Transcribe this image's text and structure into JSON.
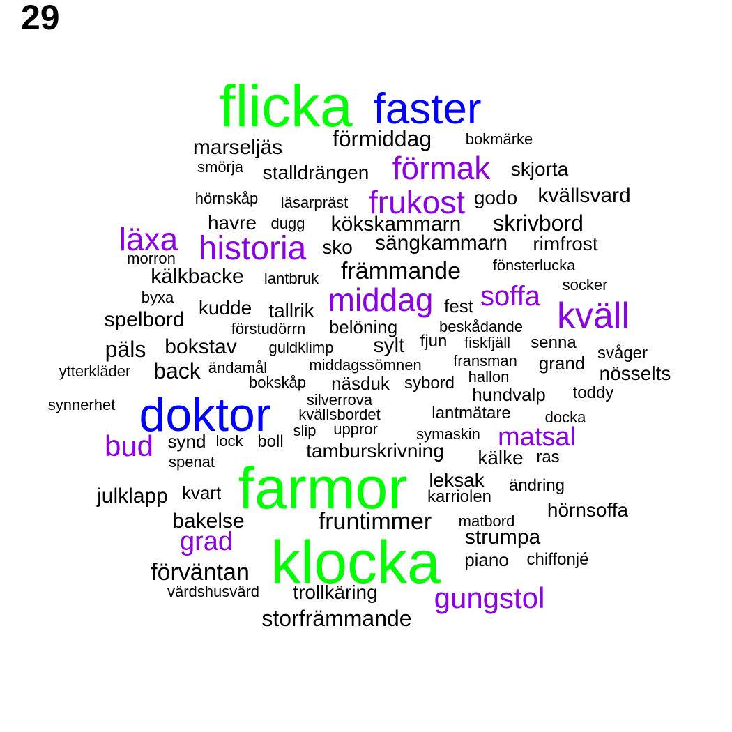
{
  "page_number": "29",
  "colors": {
    "green": "#00ff00",
    "blue": "#0000ff",
    "purple": "#8b00e6",
    "black": "#000000"
  },
  "words": [
    {
      "text": "flicka",
      "group": "green"
    },
    {
      "text": "faster",
      "group": "blue"
    },
    {
      "text": "förmiddag",
      "group": "black"
    },
    {
      "text": "bokmärke",
      "group": "black"
    },
    {
      "text": "marseljäs",
      "group": "black"
    },
    {
      "text": "smörja",
      "group": "black"
    },
    {
      "text": "stalldrängen",
      "group": "black"
    },
    {
      "text": "förmak",
      "group": "purple"
    },
    {
      "text": "skjorta",
      "group": "black"
    },
    {
      "text": "hörnskåp",
      "group": "black"
    },
    {
      "text": "läsarpräst",
      "group": "black"
    },
    {
      "text": "frukost",
      "group": "purple"
    },
    {
      "text": "godo",
      "group": "black"
    },
    {
      "text": "kvällsvard",
      "group": "black"
    },
    {
      "text": "havre",
      "group": "black"
    },
    {
      "text": "dugg",
      "group": "black"
    },
    {
      "text": "kökskammarn",
      "group": "black"
    },
    {
      "text": "skrivbord",
      "group": "black"
    },
    {
      "text": "läxa",
      "group": "purple"
    },
    {
      "text": "historia",
      "group": "purple"
    },
    {
      "text": "sko",
      "group": "black"
    },
    {
      "text": "sängkammarn",
      "group": "black"
    },
    {
      "text": "rimfrost",
      "group": "black"
    },
    {
      "text": "morron",
      "group": "black"
    },
    {
      "text": "fönsterlucka",
      "group": "black"
    },
    {
      "text": "kälkbacke",
      "group": "black"
    },
    {
      "text": "lantbruk",
      "group": "black"
    },
    {
      "text": "främmande",
      "group": "black"
    },
    {
      "text": "socker",
      "group": "black"
    },
    {
      "text": "byxa",
      "group": "black"
    },
    {
      "text": "middag",
      "group": "purple"
    },
    {
      "text": "soffa",
      "group": "purple"
    },
    {
      "text": "kudde",
      "group": "black"
    },
    {
      "text": "tallrik",
      "group": "black"
    },
    {
      "text": "fest",
      "group": "black"
    },
    {
      "text": "kväll",
      "group": "purple"
    },
    {
      "text": "spelbord",
      "group": "black"
    },
    {
      "text": "förstudörrn",
      "group": "black"
    },
    {
      "text": "belöning",
      "group": "black"
    },
    {
      "text": "beskådande",
      "group": "black"
    },
    {
      "text": "päls",
      "group": "black"
    },
    {
      "text": "bokstav",
      "group": "black"
    },
    {
      "text": "guldklimp",
      "group": "black"
    },
    {
      "text": "sylt",
      "group": "black"
    },
    {
      "text": "fjun",
      "group": "black"
    },
    {
      "text": "fiskfjäll",
      "group": "black"
    },
    {
      "text": "senna",
      "group": "black"
    },
    {
      "text": "svåger",
      "group": "black"
    },
    {
      "text": "ytterkläder",
      "group": "black"
    },
    {
      "text": "back",
      "group": "black"
    },
    {
      "text": "ändamål",
      "group": "black"
    },
    {
      "text": "middagssömnen",
      "group": "black"
    },
    {
      "text": "fransman",
      "group": "black"
    },
    {
      "text": "grand",
      "group": "black"
    },
    {
      "text": "nösselts",
      "group": "black"
    },
    {
      "text": "bokskåp",
      "group": "black"
    },
    {
      "text": "näsduk",
      "group": "black"
    },
    {
      "text": "sybord",
      "group": "black"
    },
    {
      "text": "hallon",
      "group": "black"
    },
    {
      "text": "hundvalp",
      "group": "black"
    },
    {
      "text": "toddy",
      "group": "black"
    },
    {
      "text": "synnerhet",
      "group": "black"
    },
    {
      "text": "doktor",
      "group": "blue"
    },
    {
      "text": "silverrova",
      "group": "black"
    },
    {
      "text": "kvällsbordet",
      "group": "black"
    },
    {
      "text": "lantmätare",
      "group": "black"
    },
    {
      "text": "docka",
      "group": "black"
    },
    {
      "text": "slip",
      "group": "black"
    },
    {
      "text": "uppror",
      "group": "black"
    },
    {
      "text": "symaskin",
      "group": "black"
    },
    {
      "text": "matsal",
      "group": "purple"
    },
    {
      "text": "bud",
      "group": "purple"
    },
    {
      "text": "synd",
      "group": "black"
    },
    {
      "text": "lock",
      "group": "black"
    },
    {
      "text": "boll",
      "group": "black"
    },
    {
      "text": "tamburskrivning",
      "group": "black"
    },
    {
      "text": "kälke",
      "group": "black"
    },
    {
      "text": "ras",
      "group": "black"
    },
    {
      "text": "spenat",
      "group": "black"
    },
    {
      "text": "farmor",
      "group": "green"
    },
    {
      "text": "leksak",
      "group": "black"
    },
    {
      "text": "ändring",
      "group": "black"
    },
    {
      "text": "julklapp",
      "group": "black"
    },
    {
      "text": "kvart",
      "group": "black"
    },
    {
      "text": "karriolen",
      "group": "black"
    },
    {
      "text": "hörnsoffa",
      "group": "black"
    },
    {
      "text": "bakelse",
      "group": "black"
    },
    {
      "text": "fruntimmer",
      "group": "black"
    },
    {
      "text": "matbord",
      "group": "black"
    },
    {
      "text": "grad",
      "group": "purple"
    },
    {
      "text": "strumpa",
      "group": "black"
    },
    {
      "text": "klocka",
      "group": "green"
    },
    {
      "text": "piano",
      "group": "black"
    },
    {
      "text": "chiffonjé",
      "group": "black"
    },
    {
      "text": "förväntan",
      "group": "black"
    },
    {
      "text": "värdshusvärd",
      "group": "black"
    },
    {
      "text": "trollkäring",
      "group": "black"
    },
    {
      "text": "gungstol",
      "group": "purple"
    },
    {
      "text": "storfrämmande",
      "group": "black"
    }
  ]
}
